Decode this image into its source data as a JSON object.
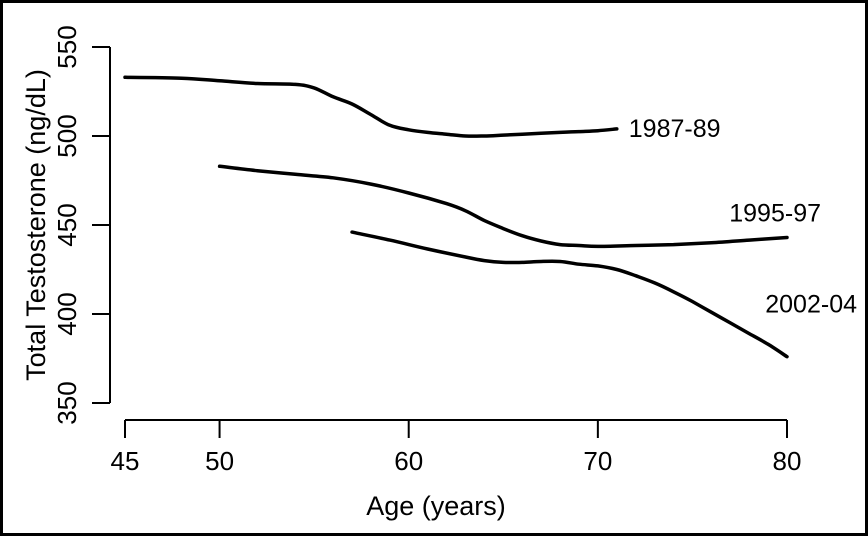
{
  "chart_data": {
    "type": "line",
    "title": "",
    "xlabel": "Age (years)",
    "ylabel": "Total Testosterone (ng/dL)",
    "xlim": [
      45,
      80
    ],
    "ylim": [
      350,
      550
    ],
    "x_ticks": [
      "45",
      "50",
      "60",
      "70",
      "80"
    ],
    "y_ticks": [
      "350",
      "400",
      "450",
      "500",
      "550"
    ],
    "grid": false,
    "legend": "inline labels at line ends",
    "series": [
      {
        "name": "1987-89",
        "x": [
          45,
          48,
          50,
          52,
          54,
          55,
          56,
          57,
          58,
          59,
          60,
          61,
          62,
          63,
          64,
          65,
          66,
          67,
          68,
          69,
          70,
          71
        ],
        "y": [
          533,
          532.5,
          531,
          529.5,
          529,
          527,
          522,
          518,
          512,
          506,
          503.5,
          502,
          501,
          500,
          500,
          500.5,
          501,
          501.5,
          502,
          502.5,
          503,
          504
        ]
      },
      {
        "name": "1995-97",
        "x": [
          50,
          52,
          54,
          56,
          58,
          60,
          62,
          63,
          64,
          65,
          66,
          67,
          68,
          69,
          70,
          72,
          74,
          76,
          78,
          80
        ],
        "y": [
          483,
          480.5,
          478.5,
          476.5,
          473,
          468,
          462,
          458,
          452.5,
          448,
          444,
          441,
          439,
          438.5,
          438,
          438.5,
          439,
          440,
          441.5,
          443
        ]
      },
      {
        "name": "2002-04",
        "x": [
          57,
          59,
          61,
          63,
          64,
          65,
          66,
          67,
          68,
          69,
          70,
          71,
          72,
          73,
          74,
          75,
          76,
          77,
          78,
          79,
          80
        ],
        "y": [
          446,
          441.5,
          436.5,
          432,
          430,
          429,
          429,
          429.5,
          429.5,
          428,
          427,
          425,
          421.5,
          417.5,
          412.5,
          407,
          401,
          395,
          389,
          383,
          376
        ]
      }
    ]
  }
}
